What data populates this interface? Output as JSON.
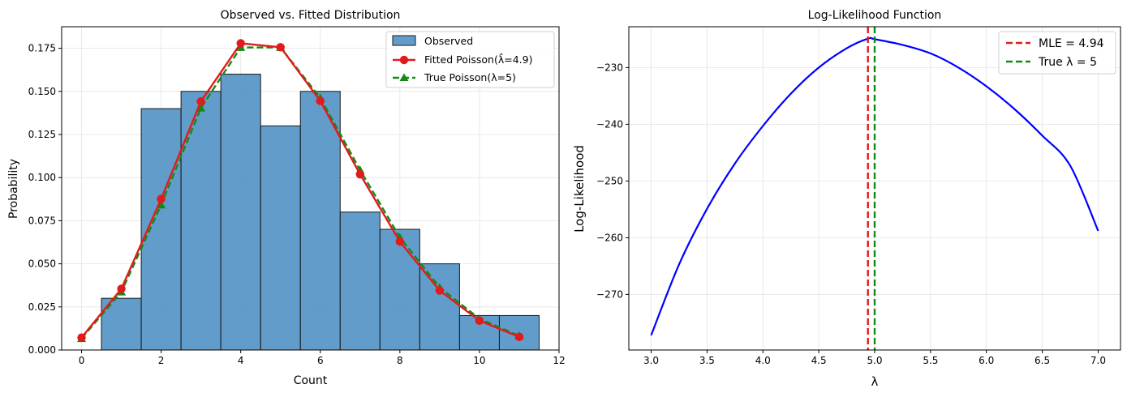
{
  "chart_data": [
    {
      "type": "bar",
      "title": "Observed vs. Fitted Distribution",
      "xlabel": "Count",
      "ylabel": "Probability",
      "xlim": [
        -0.5,
        12
      ],
      "ylim": [
        0,
        0.1875
      ],
      "xticks": [
        0,
        2,
        4,
        6,
        8,
        10,
        12
      ],
      "yticks": [
        0.0,
        0.025,
        0.05,
        0.075,
        0.1,
        0.125,
        0.15,
        0.175
      ],
      "ytick_labels": [
        "0.000",
        "0.025",
        "0.050",
        "0.075",
        "0.100",
        "0.125",
        "0.150",
        "0.175"
      ],
      "grid": true,
      "legend_position": "top-right",
      "bars": {
        "name": "Observed",
        "color": "#4a8dc2",
        "edge": "#1a1a1a",
        "categories": [
          0,
          1,
          2,
          3,
          4,
          5,
          6,
          7,
          8,
          9,
          10,
          11
        ],
        "values": [
          0.0,
          0.03,
          0.14,
          0.15,
          0.16,
          0.13,
          0.15,
          0.08,
          0.07,
          0.05,
          0.02,
          0.02
        ]
      },
      "series": [
        {
          "name": "Fitted Poisson(λ̂=4.9)",
          "color": "#e31a1c",
          "marker": "circle",
          "dash": "solid",
          "x": [
            0,
            1,
            2,
            3,
            4,
            5,
            6,
            7,
            8,
            9,
            10,
            11
          ],
          "values": [
            0.0072,
            0.0355,
            0.0876,
            0.1442,
            0.1779,
            0.1756,
            0.1445,
            0.1019,
            0.0629,
            0.0345,
            0.017,
            0.0076
          ]
        },
        {
          "name": "True Poisson(λ=5)",
          "color": "#138a13",
          "marker": "triangle",
          "dash": "dashed",
          "x": [
            0,
            1,
            2,
            3,
            4,
            5,
            6,
            7,
            8,
            9,
            10,
            11
          ],
          "values": [
            0.0067,
            0.0337,
            0.0842,
            0.1404,
            0.1755,
            0.1755,
            0.1462,
            0.1044,
            0.0653,
            0.0363,
            0.0181,
            0.0082
          ]
        }
      ]
    },
    {
      "type": "line",
      "title": "Log-Likelihood Function",
      "xlabel": "λ",
      "ylabel": "Log-Likelihood",
      "xlim": [
        2.8,
        7.2
      ],
      "ylim": [
        -279.8,
        -222.8
      ],
      "xticks": [
        3.0,
        3.5,
        4.0,
        4.5,
        5.0,
        5.5,
        6.0,
        6.5,
        7.0
      ],
      "xtick_labels": [
        "3.0",
        "3.5",
        "4.0",
        "4.5",
        "5.0",
        "5.5",
        "6.0",
        "6.5",
        "7.0"
      ],
      "yticks": [
        -270,
        -260,
        -250,
        -240,
        -230
      ],
      "ytick_labels": [
        "−270",
        "−260",
        "−250",
        "−240",
        "−230"
      ],
      "grid": true,
      "legend_position": "top-right",
      "series": [
        {
          "name": "",
          "color": "#0000ff",
          "x": [
            3.0,
            3.25,
            3.5,
            3.75,
            4.0,
            4.25,
            4.5,
            4.75,
            4.94,
            5.0,
            5.25,
            5.5,
            5.75,
            6.0,
            6.25,
            6.5,
            6.75,
            7.0
          ],
          "values": [
            -277.2,
            -264.7,
            -254.9,
            -246.9,
            -240.3,
            -234.6,
            -230.0,
            -226.6,
            -224.9,
            -225.0,
            -226.0,
            -227.5,
            -230.0,
            -233.3,
            -237.3,
            -242.0,
            -247.3,
            -258.8
          ]
        }
      ],
      "vlines": [
        {
          "name": "MLE = 4.94",
          "x": 4.94,
          "color": "#e31a1c",
          "dash": "dashed"
        },
        {
          "name": "True λ = 5",
          "x": 5.0,
          "color": "#138a13",
          "dash": "dashed"
        }
      ]
    }
  ]
}
